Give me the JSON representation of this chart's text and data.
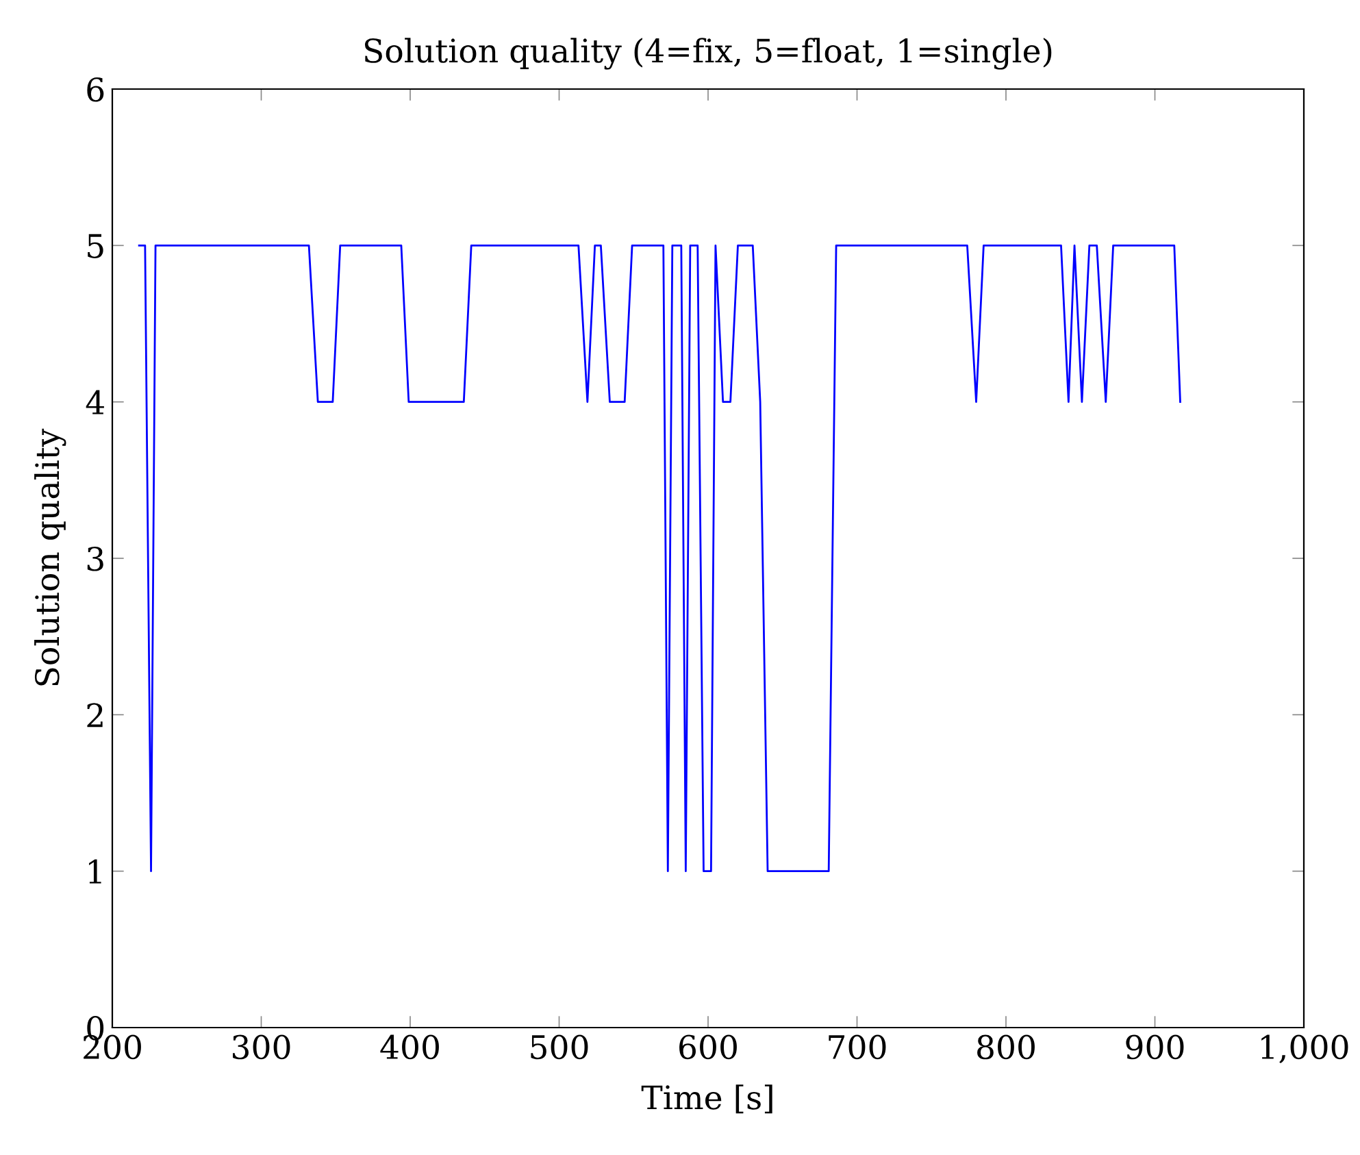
{
  "chart_data": {
    "type": "line",
    "title": "Solution quality (4=fix, 5=float, 1=single)",
    "xlabel": "Time [s]",
    "ylabel": "Solution quality",
    "series": [
      {
        "color": "#0000ff",
        "x": [
          218,
          222,
          226,
          229,
          332,
          338,
          348,
          353,
          394,
          399,
          436,
          441,
          513,
          519,
          524,
          528,
          534,
          544,
          549,
          570,
          573,
          576,
          582,
          585,
          588,
          593,
          597,
          602,
          605,
          610,
          615,
          620,
          630,
          635,
          640,
          681,
          686,
          774,
          780,
          785,
          837,
          842,
          846,
          851,
          856,
          861,
          867,
          872,
          913,
          917
        ],
        "values": [
          5,
          5,
          1,
          5,
          5,
          4,
          4,
          5,
          5,
          4,
          4,
          5,
          5,
          4,
          5,
          5,
          4,
          4,
          5,
          5,
          1,
          5,
          5,
          1,
          5,
          5,
          1,
          1,
          5,
          4,
          4,
          5,
          5,
          4,
          1,
          1,
          5,
          5,
          4,
          5,
          5,
          4,
          5,
          4,
          5,
          5,
          4,
          5,
          5,
          4
        ]
      }
    ],
    "xlim": [
      200,
      1000
    ],
    "ylim": [
      0,
      6
    ],
    "xticks": [
      200,
      300,
      400,
      500,
      600,
      700,
      800,
      900,
      {
        "value": 1000,
        "label": "1,000"
      }
    ],
    "yticks": [
      0,
      1,
      2,
      3,
      4,
      5,
      6
    ],
    "grid": false,
    "marker": "none",
    "line_style": "solid"
  }
}
